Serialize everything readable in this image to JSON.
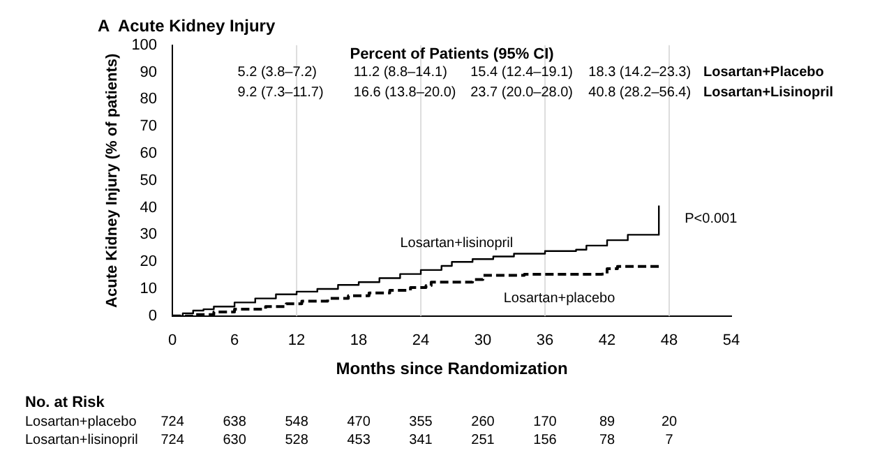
{
  "chart_data": {
    "type": "step",
    "title": "A  Acute Kidney Injury",
    "xlabel": "Months since Randomization",
    "ylabel": "Acute Kidney Injury (% of patients)",
    "xlim": [
      0,
      54
    ],
    "xticks": [
      0,
      6,
      12,
      18,
      24,
      30,
      36,
      42,
      48,
      54
    ],
    "ylim": [
      0,
      100
    ],
    "yticks": [
      0,
      10,
      20,
      30,
      40,
      50,
      60,
      70,
      80,
      90,
      100
    ],
    "grid": false,
    "legend": false,
    "marker": "none",
    "ref_lines": [
      {
        "axis": "x",
        "value": 12,
        "color": "#dddddd"
      },
      {
        "axis": "x",
        "value": 24,
        "color": "#dddddd"
      },
      {
        "axis": "x",
        "value": 36,
        "color": "#dddddd"
      },
      {
        "axis": "x",
        "value": 48,
        "color": "#dddddd"
      }
    ],
    "series": [
      {
        "name": "Losartan+lisinopril",
        "color": "#000000",
        "line_style": "solid",
        "x": [
          0,
          1,
          2,
          3,
          4,
          6,
          8,
          10,
          12,
          14,
          16,
          18,
          20,
          22,
          24,
          26,
          27,
          29,
          31,
          33,
          36,
          39,
          40,
          42,
          44,
          47,
          47
        ],
        "values": [
          0,
          1,
          2,
          2.5,
          3.5,
          5,
          6.5,
          8,
          9,
          10,
          11.5,
          12.5,
          14,
          15.5,
          17,
          18.5,
          20,
          21,
          22,
          23,
          24,
          24.5,
          26,
          28,
          30,
          30.5,
          40.8
        ]
      },
      {
        "name": "Losartan+placebo",
        "color": "#000000",
        "line_style": "dashed",
        "x": [
          0,
          2,
          4,
          6,
          9,
          11,
          12.5,
          15,
          17,
          19,
          21,
          23,
          24.5,
          25,
          29,
          30,
          34,
          41.5,
          42,
          43,
          47
        ],
        "values": [
          0,
          0.5,
          1.5,
          2.5,
          3.5,
          4.5,
          5.5,
          6.5,
          7.5,
          8.5,
          9.5,
          10.5,
          11.2,
          12.5,
          13.5,
          15,
          15.4,
          15.5,
          17.5,
          18.3,
          18.3
        ]
      }
    ],
    "annotations": [
      "Percent of Patients (95% CI)",
      "5.2 (3.8–7.2)",
      "11.2 (8.8–14.1)",
      "15.4 (12.4–19.1)",
      "18.3 (14.2–23.3)",
      "Losartan+Placebo",
      "9.2 (7.3–11.7)",
      "16.6 (13.8–20.0)",
      "23.7 (20.0–28.0)",
      "40.8 (28.2–56.4)",
      "Losartan+Lisinopril",
      "P<0.001",
      "No. at Risk",
      "Losartan+placebo",
      "724",
      "638",
      "548",
      "470",
      "355",
      "260",
      "170",
      "89",
      "20",
      "Losartan+lisinopril",
      "724",
      "630",
      "528",
      "453",
      "341",
      "251",
      "156",
      "78",
      "7"
    ]
  }
}
